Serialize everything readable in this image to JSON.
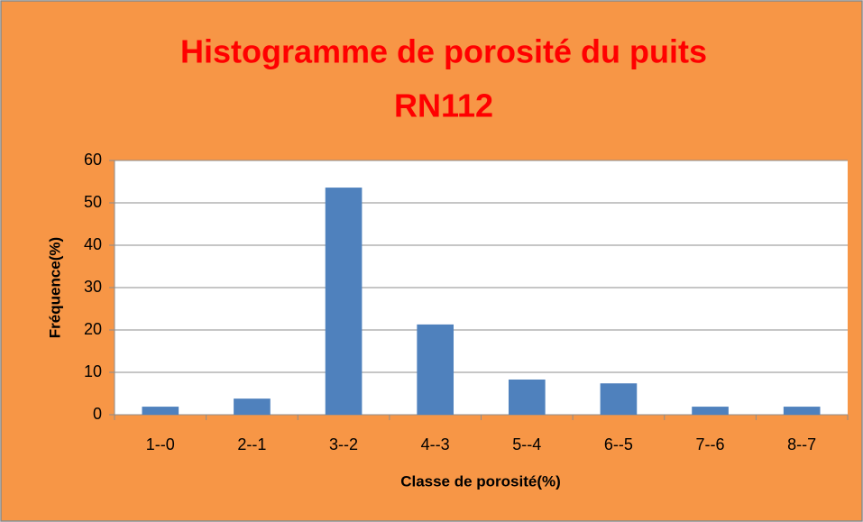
{
  "chart_data": {
    "type": "bar",
    "title": [
      "Histogramme de porosité du puits",
      "RN112"
    ],
    "xlabel": "Classe de porosité(%)",
    "ylabel": "Fréquence(%)",
    "categories": [
      "1--0",
      "2--1",
      "3--2",
      "4--3",
      "5--4",
      "6--5",
      "7--6",
      "8--7"
    ],
    "values": [
      1.9,
      3.8,
      53.6,
      21.3,
      8.3,
      7.4,
      1.9,
      1.9
    ],
    "color": "#4f81bd",
    "ylim": [
      0,
      60
    ],
    "yticks": [
      0,
      10,
      20,
      30,
      40,
      50,
      60
    ],
    "grid": true
  }
}
